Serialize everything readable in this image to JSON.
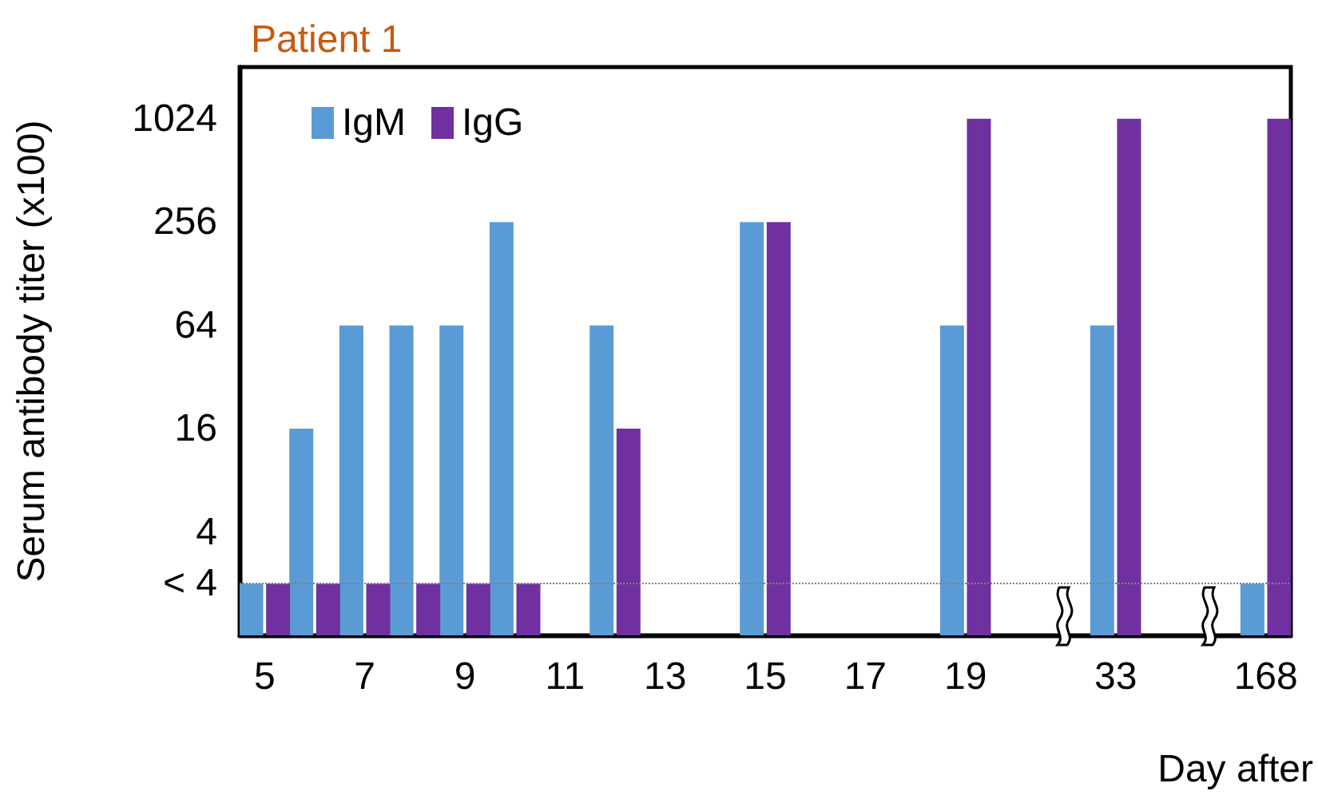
{
  "chart_data": {
    "type": "bar",
    "title": "Patient 1",
    "xlabel": "Day after",
    "ylabel": "Serum antibody titer (x100)",
    "categories": [
      "5",
      null,
      "7",
      null,
      "9",
      null,
      "11",
      null,
      "13",
      null,
      "15",
      null,
      "17",
      null,
      "19",
      null,
      null,
      "33",
      null,
      null,
      "168"
    ],
    "series": [
      {
        "name": "IgM",
        "color": "#5b9bd5",
        "values": [
          2,
          16,
          64,
          64,
          64,
          256,
          null,
          64,
          null,
          null,
          256,
          null,
          null,
          null,
          64,
          null,
          null,
          64,
          null,
          null,
          2
        ]
      },
      {
        "name": "IgG",
        "color": "#7030a0",
        "values": [
          2,
          2,
          2,
          2,
          2,
          2,
          null,
          16,
          null,
          null,
          256,
          null,
          null,
          null,
          1024,
          null,
          null,
          1024,
          null,
          null,
          1024
        ]
      }
    ],
    "log": true,
    "ylim": [
      1,
      2048
    ],
    "yticks": [
      {
        "value": 2,
        "label": "< 4"
      },
      4,
      16,
      64,
      256,
      1024
    ],
    "ref_lines": [
      {
        "axis": "y",
        "value": 2,
        "color": "#808080",
        "line_style": "dotted"
      }
    ],
    "legend": "top left",
    "grid": false
  }
}
